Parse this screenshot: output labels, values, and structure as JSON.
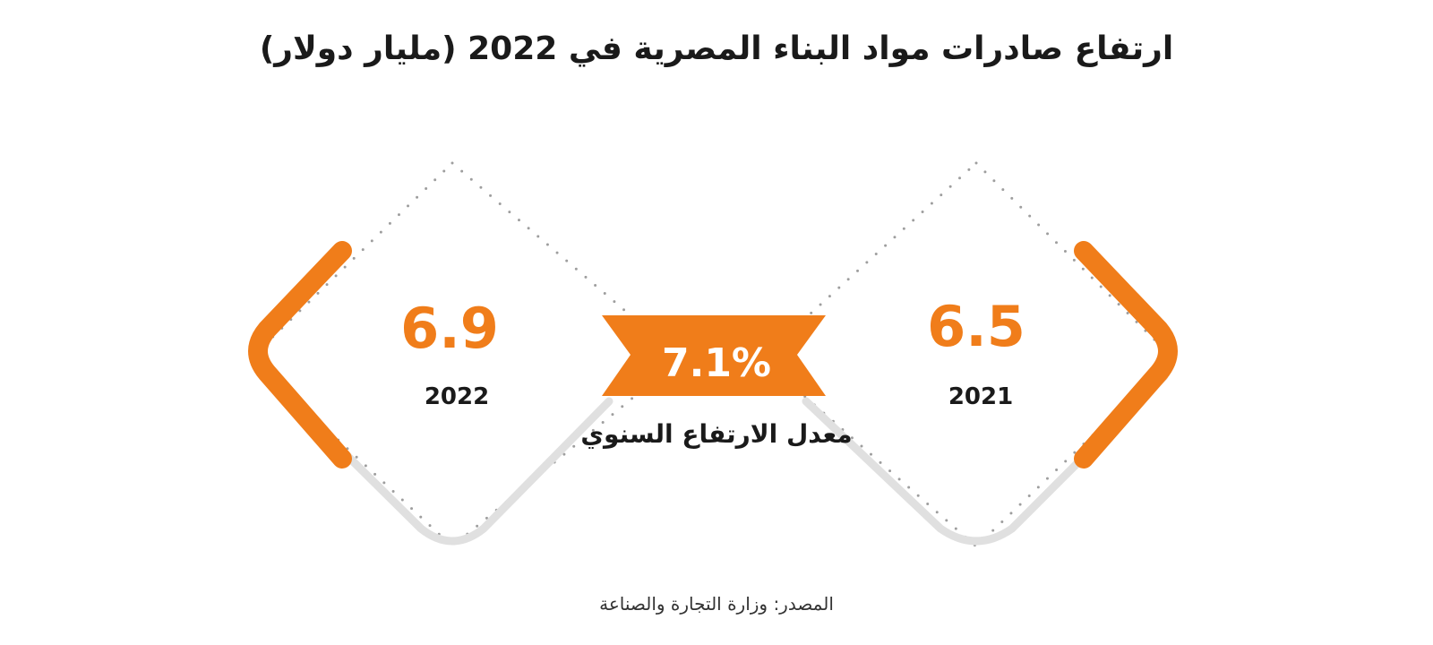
{
  "chart_data": {
    "type": "comparison",
    "title": "ارتفاع صادرات مواد البناء المصرية في 2022 (مليار دولار)",
    "items": [
      {
        "year": "2021",
        "value": 6.5,
        "value_label": "6.5"
      },
      {
        "year": "2022",
        "value": 6.9,
        "value_label": "6.9"
      }
    ],
    "growth": {
      "value_label": "7.1%",
      "label": "معدل الارتفاع السنوي"
    },
    "source": "المصدر: وزارة التجارة والصناعة"
  },
  "colors": {
    "accent": "#f07d1a",
    "dots": "#9e9e9e",
    "shadow": "#e0e0e0",
    "text": "#1a1a1a"
  }
}
